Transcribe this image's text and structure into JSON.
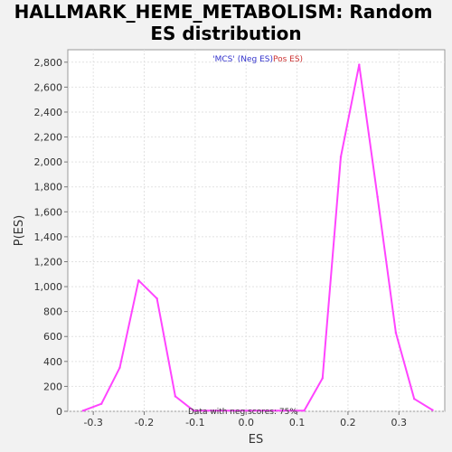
{
  "chart_data": {
    "type": "line",
    "title": "HALLMARK_HEME_METABOLISM: Random ES distribution",
    "title_lines": [
      "HALLMARK_HEME_METABOLISM: Random",
      "ES distribution"
    ],
    "xlabel": "ES",
    "ylabel": "P(ES)",
    "xlim": [
      -0.35,
      0.39
    ],
    "ylim": [
      0,
      2900
    ],
    "x_ticks": [
      -0.3,
      -0.2,
      -0.1,
      0.0,
      0.1,
      0.2,
      0.3
    ],
    "x_tick_labels": [
      "-0.3",
      "-0.2",
      "-0.1",
      "0.0",
      "0.1",
      "0.2",
      "0.3"
    ],
    "y_ticks": [
      0,
      200,
      400,
      600,
      800,
      1000,
      1200,
      1400,
      1600,
      1800,
      2000,
      2200,
      2400,
      2600,
      2800
    ],
    "y_tick_labels": [
      "0",
      "200",
      "400",
      "600",
      "800",
      "1,000",
      "1,200",
      "1,400",
      "1,600",
      "1,800",
      "2,000",
      "2,200",
      "2,400",
      "2,600",
      "2,800"
    ],
    "grid": true,
    "legend": {
      "position": "top-center",
      "parts": [
        {
          "text": "'MCS' (Neg ES)",
          "color": "#3333cc"
        },
        {
          "text": "Pos ES)",
          "color": "#cc3333"
        }
      ]
    },
    "annotation": "Data with neg scores: 75%",
    "line_color": "#ff44ff",
    "series": [
      {
        "x": [
          -0.32,
          -0.284,
          -0.248,
          -0.211,
          -0.175,
          -0.139,
          -0.103,
          0.114,
          0.15,
          0.186,
          0.222,
          0.258,
          0.294,
          0.33,
          0.366
        ],
        "values": [
          5,
          60,
          350,
          1050,
          905,
          120,
          5,
          5,
          265,
          2040,
          2780,
          1720,
          630,
          100,
          10
        ]
      }
    ]
  }
}
